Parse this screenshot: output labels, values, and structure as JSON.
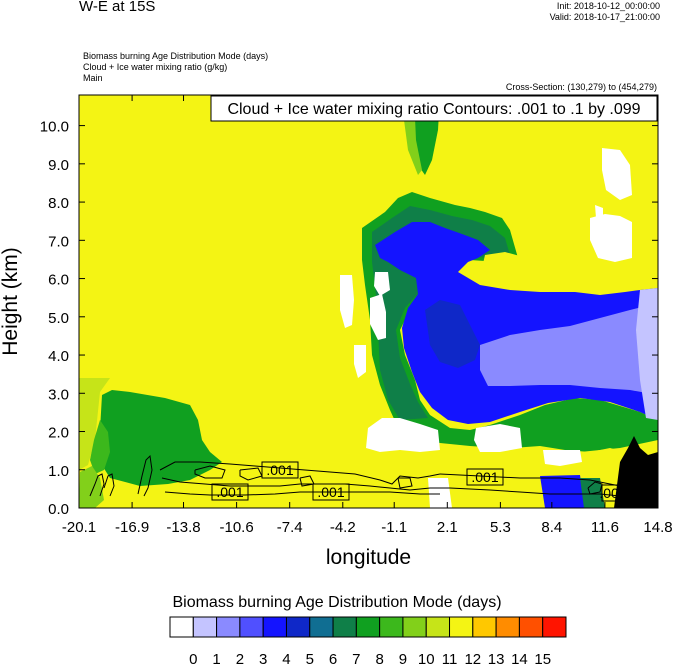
{
  "header": {
    "title": "W-E at 15S",
    "init": "Init: 2018-10-12_00:00:00",
    "valid": "Valid: 2018-10-17_21:00:00",
    "descriptions": [
      "Biomass burning Age Distribution Mode   (days)",
      "Cloud + Ice water mixing ratio   (g/kg)",
      "Main"
    ],
    "cross_section": "Cross-Section: (130,279) to (454,279)"
  },
  "chart_data": {
    "type": "heatmap",
    "title": "W-E at 15S",
    "annotation": "Cloud + Ice water mixing ratio Contours: .001 to .1 by .099",
    "xlabel": "longitude",
    "ylabel": "Height (km)",
    "x_ticks": [
      "-20.1",
      "-16.9",
      "-13.8",
      "-10.6",
      "-7.4",
      "-4.2",
      "-1.1",
      "2.1",
      "5.3",
      "8.4",
      "11.6",
      "14.8"
    ],
    "y_ticks": [
      "0.0",
      "1.0",
      "2.0",
      "3.0",
      "4.0",
      "5.0",
      "6.0",
      "7.0",
      "8.0",
      "9.0",
      "10.0"
    ],
    "xlim": [
      -20.1,
      14.8
    ],
    "ylim": [
      0,
      10.8
    ],
    "contour_labels": [
      ".001",
      ".001",
      ".001",
      ".001",
      ".001"
    ],
    "colorbar": {
      "title": "Biomass burning Age Distribution Mode  (days)",
      "labels": [
        "0",
        "1",
        "2",
        "3",
        "4",
        "5",
        "6",
        "7",
        "8",
        "9",
        "10",
        "11",
        "12",
        "13",
        "14",
        "15"
      ],
      "colors": [
        "#ffffff",
        "#c4c4ff",
        "#8a8aff",
        "#5050ff",
        "#1414ff",
        "#0f28c8",
        "#106e92",
        "#0f7f48",
        "#10a020",
        "#3cb81c",
        "#82d01a",
        "#c6e418",
        "#f4f414",
        "#ffc800",
        "#ff8c00",
        "#ff5000",
        "#ff1400"
      ]
    }
  }
}
